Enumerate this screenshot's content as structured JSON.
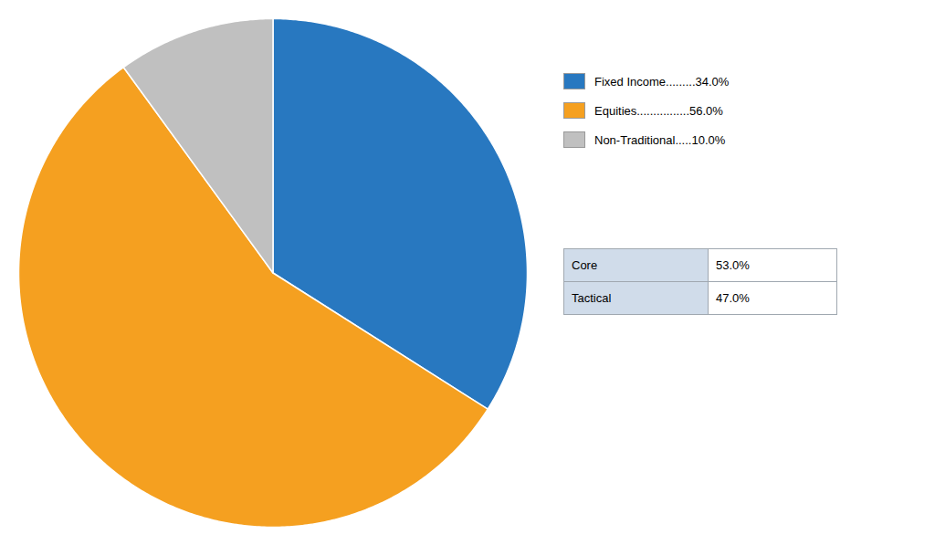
{
  "chart_data": {
    "type": "pie",
    "categories": [
      "Fixed Income.........34.0%",
      "Equities................56.0%",
      "Non-Traditional.....10.0%"
    ],
    "values": [
      34.0,
      56.0,
      10.0
    ],
    "colors": [
      "#2878c0",
      "#f5a020",
      "#c0c0c0"
    ],
    "legend": "right",
    "table": {
      "categories": [
        "Core",
        "Tactical"
      ],
      "values": [
        53.0,
        47.0
      ],
      "value_labels": [
        "53.0%",
        "47.0%"
      ],
      "colors": [
        "#d0dcea",
        "#ffffff"
      ]
    }
  }
}
